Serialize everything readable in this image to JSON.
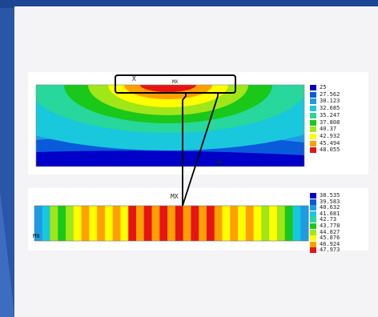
{
  "top_plot": {
    "marker_x": "X",
    "marker_mx": "MX",
    "marker_mn": "MN",
    "legend": [
      {
        "value": "25",
        "color": "#0000c8"
      },
      {
        "value": "27.562",
        "color": "#0a5adc"
      },
      {
        "value": "30.123",
        "color": "#1e9be6"
      },
      {
        "value": "32.685",
        "color": "#19c8dc"
      },
      {
        "value": "35.247",
        "color": "#28d79b"
      },
      {
        "value": "37.808",
        "color": "#19c819"
      },
      {
        "value": "40.37",
        "color": "#a0e619"
      },
      {
        "value": "42.932",
        "color": "#ffff00"
      },
      {
        "value": "45.494",
        "color": "#ffa000"
      },
      {
        "value": "48.055",
        "color": "#e61414"
      }
    ]
  },
  "bottom_plot": {
    "marker_mx": "MX",
    "marker_mn": "MN",
    "legend": [
      {
        "value": "38.535",
        "color": "#0000c8"
      },
      {
        "value": "39.583",
        "color": "#0a5adc"
      },
      {
        "value": "40.632",
        "color": "#1e9be6"
      },
      {
        "value": "41.681",
        "color": "#19c8dc"
      },
      {
        "value": "42.73",
        "color": "#28d79b"
      },
      {
        "value": "43.778",
        "color": "#19c819"
      },
      {
        "value": "44.827",
        "color": "#a0e619"
      },
      {
        "value": "45.876",
        "color": "#ffff00"
      },
      {
        "value": "46.924",
        "color": "#ffa000"
      },
      {
        "value": "47.973",
        "color": "#e61414"
      }
    ],
    "stripes": [
      "#1e9be6",
      "#19c8dc",
      "#a0e619",
      "#19c819",
      "#a0e619",
      "#ffff00",
      "#ffa000",
      "#ffff00",
      "#ffa000",
      "#ffff00",
      "#ffa000",
      "#ffff00",
      "#e61414",
      "#ffa000",
      "#e61414",
      "#ffa000",
      "#e61414",
      "#ffa000",
      "#e61414",
      "#ffa000",
      "#e61414",
      "#ffa000",
      "#e61414",
      "#ffa000",
      "#ffff00",
      "#ffa000",
      "#ffff00",
      "#ffa000",
      "#ffff00",
      "#a0e619",
      "#ffff00",
      "#a0e619",
      "#19c819",
      "#19c8dc",
      "#1e9be6"
    ]
  }
}
